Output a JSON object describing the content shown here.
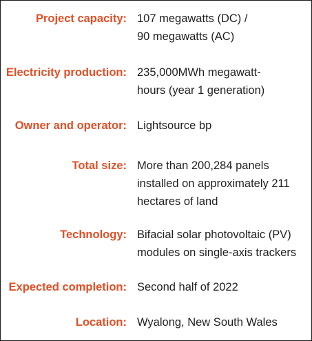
{
  "rows": [
    {
      "label": "Project capacity:",
      "lines": [
        "107 megawatts (DC) /",
        "90 megawatts (AC)"
      ]
    },
    {
      "label": "Electricity production:",
      "lines": [
        "235,000MWh megawatt-",
        "hours (year 1 generation)"
      ]
    },
    {
      "label": "Owner and operator:",
      "lines": [
        "Lightsource bp"
      ]
    },
    {
      "label": "Total size:",
      "lines": [
        "More than 200,284 panels",
        "installed on approximately 211",
        "hectares of land"
      ]
    },
    {
      "label": "Technology:",
      "lines": [
        "Bifacial solar photovoltaic (PV)",
        "modules on single-axis trackers"
      ]
    },
    {
      "label": "Expected completion:",
      "lines": [
        "Second half of 2022"
      ]
    },
    {
      "label": "Location:",
      "lines": [
        "Wyalong, New South Wales"
      ]
    }
  ],
  "colors": {
    "label": "#e14f25",
    "value": "#1f1f1f",
    "border": "#1a1a1a"
  }
}
